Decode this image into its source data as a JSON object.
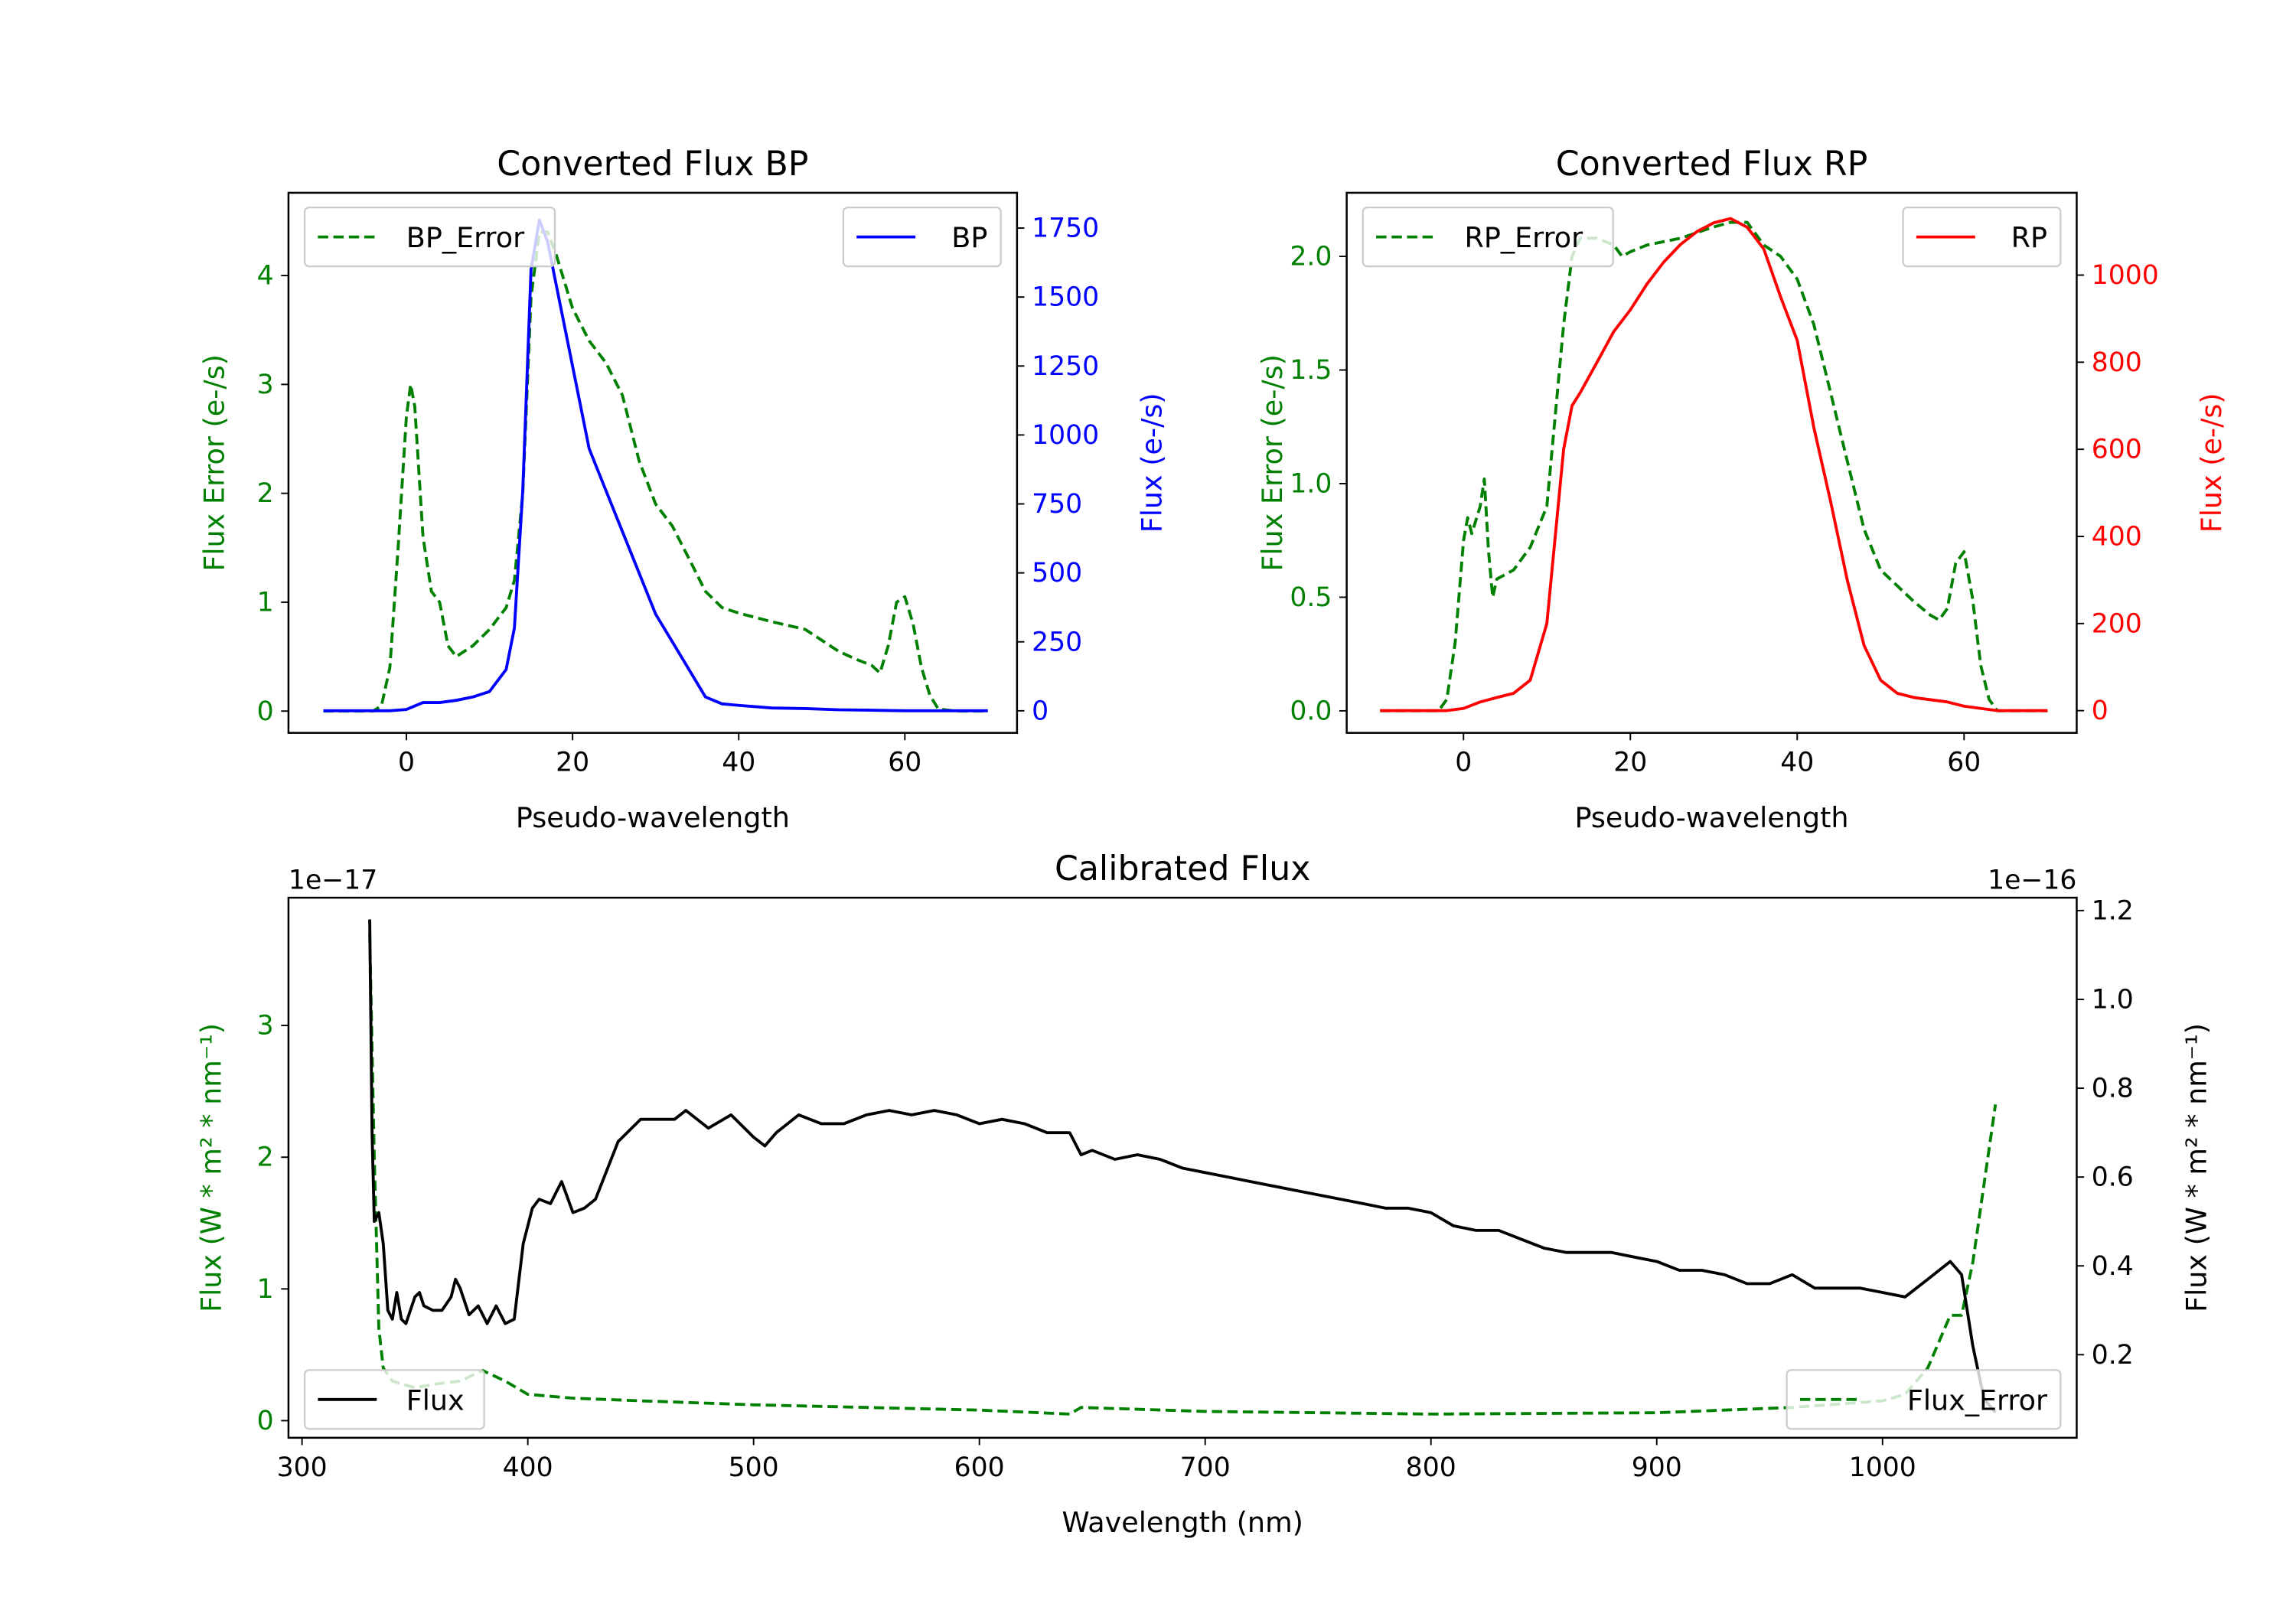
{
  "chart_data": [
    {
      "type": "line",
      "title": "Converted Flux BP",
      "xlabel": "Pseudo-wavelength",
      "ylabel_left": "Flux Error (e-/s)",
      "ylabel_right": "Flux (e-/s)",
      "xlim": [
        -14.2,
        73.5
      ],
      "ylim_left": [
        -0.2,
        4.76
      ],
      "ylim_right": [
        -80,
        1878
      ],
      "xticks": [
        0,
        20,
        40,
        60
      ],
      "yticks_left": [
        0,
        1,
        2,
        3,
        4
      ],
      "yticks_right": [
        0,
        250,
        500,
        750,
        1000,
        1250,
        1500,
        1750
      ],
      "left_color": "#008000",
      "right_color": "#0000ff",
      "legend_left": "BP_Error",
      "legend_right": "BP",
      "series": [
        {
          "name": "BP_Error",
          "axis": "left",
          "style": "dashed",
          "color": "#008000",
          "x": [
            -10,
            -4,
            -3,
            -2,
            -1,
            0,
            0.5,
            1,
            2,
            3,
            4,
            5,
            6,
            8,
            10,
            12,
            13,
            14,
            15,
            16,
            17,
            18,
            20,
            22,
            24,
            26,
            28,
            30,
            32,
            34,
            36,
            38,
            40,
            44,
            48,
            50,
            52,
            54,
            56,
            57,
            58,
            59,
            60,
            61,
            62,
            63,
            64,
            66,
            70
          ],
          "y": [
            0,
            0,
            0.05,
            0.4,
            1.5,
            2.7,
            3.0,
            2.8,
            1.6,
            1.1,
            1.0,
            0.6,
            0.5,
            0.6,
            0.75,
            0.95,
            1.2,
            2.0,
            3.8,
            4.4,
            4.4,
            4.2,
            3.7,
            3.4,
            3.2,
            2.9,
            2.3,
            1.9,
            1.7,
            1.4,
            1.1,
            0.95,
            0.9,
            0.82,
            0.75,
            0.65,
            0.55,
            0.48,
            0.42,
            0.35,
            0.6,
            1.0,
            1.05,
            0.8,
            0.4,
            0.15,
            0.02,
            0,
            0
          ]
        },
        {
          "name": "BP",
          "axis": "right",
          "style": "solid",
          "color": "#0000ff",
          "x": [
            -10,
            -2,
            0,
            2,
            4,
            6,
            8,
            10,
            12,
            13,
            14,
            15,
            16,
            17,
            18,
            20,
            22,
            24,
            26,
            28,
            30,
            32,
            34,
            36,
            38,
            40,
            44,
            48,
            52,
            56,
            60,
            64,
            70
          ],
          "y": [
            0,
            0,
            5,
            30,
            30,
            38,
            50,
            70,
            150,
            300,
            800,
            1600,
            1780,
            1700,
            1550,
            1250,
            950,
            800,
            650,
            500,
            350,
            250,
            150,
            50,
            25,
            20,
            10,
            8,
            4,
            2,
            0,
            0,
            0
          ]
        }
      ]
    },
    {
      "type": "line",
      "title": "Converted Flux RP",
      "xlabel": "Pseudo-wavelength",
      "ylabel_left": "Flux Error (e-/s)",
      "ylabel_right": "Flux (e-/s)",
      "xlim": [
        -14,
        73.5
      ],
      "ylim_left": [
        -0.097,
        2.28
      ],
      "ylim_right": [
        -51,
        1189
      ],
      "xticks": [
        0,
        20,
        40,
        60
      ],
      "yticks_left": [
        "0.0",
        "0.5",
        "1.0",
        "1.5",
        "2.0"
      ],
      "yticks_right": [
        0,
        200,
        400,
        600,
        800,
        1000
      ],
      "left_color": "#008000",
      "right_color": "#ff0000",
      "legend_left": "RP_Error",
      "legend_right": "RP",
      "series": [
        {
          "name": "RP_Error",
          "axis": "left",
          "style": "dashed",
          "color": "#008000",
          "x": [
            -10,
            -3,
            -2,
            -1,
            0,
            0.5,
            1,
            2,
            2.5,
            3,
            3.5,
            4,
            6,
            8,
            10,
            11,
            12,
            13,
            14,
            16,
            18,
            19,
            20,
            22,
            26,
            30,
            32,
            34,
            36,
            38,
            40,
            42,
            44,
            46,
            48,
            50,
            52,
            54,
            56,
            57,
            58,
            59,
            60,
            61,
            62,
            63,
            64,
            70
          ],
          "y": [
            0,
            0,
            0.05,
            0.3,
            0.75,
            0.85,
            0.78,
            0.9,
            1.02,
            0.7,
            0.5,
            0.58,
            0.62,
            0.72,
            0.9,
            1.3,
            1.7,
            2.0,
            2.08,
            2.08,
            2.05,
            2.0,
            2.02,
            2.05,
            2.08,
            2.13,
            2.15,
            2.15,
            2.05,
            2.0,
            1.9,
            1.7,
            1.4,
            1.1,
            0.8,
            0.62,
            0.55,
            0.48,
            0.42,
            0.4,
            0.45,
            0.65,
            0.7,
            0.5,
            0.2,
            0.05,
            0,
            0
          ]
        },
        {
          "name": "RP",
          "axis": "right",
          "style": "solid",
          "color": "#ff0000",
          "x": [
            -10,
            -2,
            0,
            2,
            4,
            6,
            8,
            10,
            11,
            12,
            13,
            14,
            16,
            18,
            20,
            22,
            24,
            26,
            28,
            30,
            32,
            34,
            36,
            38,
            40,
            42,
            44,
            46,
            48,
            50,
            52,
            54,
            56,
            58,
            60,
            62,
            64,
            70
          ],
          "y": [
            0,
            0,
            5,
            20,
            30,
            40,
            70,
            200,
            400,
            600,
            700,
            730,
            800,
            870,
            920,
            980,
            1030,
            1070,
            1100,
            1120,
            1130,
            1110,
            1060,
            950,
            850,
            650,
            480,
            300,
            150,
            70,
            40,
            30,
            25,
            20,
            10,
            5,
            0,
            0
          ]
        }
      ]
    },
    {
      "type": "line",
      "title": "Calibrated Flux",
      "xlabel": "Wavelength (nm)",
      "ylabel_left": "Flux (W * m² * nm⁻¹)",
      "ylabel_right": "Flux (W * m² * nm⁻¹)",
      "offset_left": "1e−17",
      "offset_right": "1e−16",
      "xlim": [
        294,
        1086
      ],
      "ylim_left": [
        -0.13,
        3.97
      ],
      "ylim_right": [
        0.013,
        1.229
      ],
      "xticks": [
        300,
        400,
        500,
        600,
        700,
        800,
        900,
        1000
      ],
      "yticks_left": [
        0,
        1,
        2,
        3
      ],
      "yticks_right": [
        "0.2",
        "0.4",
        "0.6",
        "0.8",
        "1.0",
        "1.2"
      ],
      "left_color": "#008000",
      "right_color": "#000000",
      "legend_left": "Flux",
      "legend_right": "Flux_Error",
      "series": [
        {
          "name": "Flux_Error",
          "axis": "left",
          "style": "dashed",
          "color": "#008000",
          "x": [
            330,
            332,
            334,
            336,
            340,
            350,
            360,
            370,
            380,
            390,
            400,
            420,
            450,
            500,
            550,
            600,
            640,
            645,
            700,
            800,
            900,
            960,
            1000,
            1010,
            1020,
            1030,
            1035,
            1040,
            1045,
            1050
          ],
          "y": [
            3.7,
            2.0,
            0.7,
            0.4,
            0.3,
            0.25,
            0.28,
            0.3,
            0.38,
            0.3,
            0.2,
            0.17,
            0.15,
            0.12,
            0.1,
            0.08,
            0.05,
            0.1,
            0.07,
            0.05,
            0.06,
            0.1,
            0.15,
            0.2,
            0.4,
            0.8,
            0.8,
            1.2,
            1.8,
            2.4
          ]
        },
        {
          "name": "Flux",
          "axis": "right",
          "style": "solid",
          "color": "#000000",
          "x": [
            330,
            331,
            332,
            334,
            336,
            338,
            340,
            342,
            344,
            346,
            350,
            352,
            354,
            358,
            362,
            366,
            368,
            370,
            374,
            378,
            382,
            386,
            390,
            394,
            398,
            402,
            405,
            410,
            415,
            420,
            425,
            430,
            440,
            450,
            460,
            465,
            470,
            480,
            490,
            500,
            505,
            510,
            520,
            530,
            540,
            550,
            560,
            570,
            580,
            590,
            600,
            610,
            620,
            630,
            640,
            645,
            650,
            660,
            670,
            680,
            690,
            700,
            710,
            720,
            730,
            740,
            750,
            760,
            770,
            780,
            790,
            800,
            810,
            820,
            830,
            840,
            850,
            860,
            870,
            880,
            890,
            900,
            910,
            920,
            930,
            940,
            950,
            960,
            970,
            980,
            990,
            1000,
            1010,
            1020,
            1030,
            1035,
            1040,
            1045,
            1050
          ],
          "y": [
            1.18,
            0.7,
            0.5,
            0.52,
            0.45,
            0.3,
            0.28,
            0.34,
            0.28,
            0.27,
            0.33,
            0.34,
            0.31,
            0.3,
            0.3,
            0.33,
            0.37,
            0.35,
            0.29,
            0.31,
            0.27,
            0.31,
            0.27,
            0.28,
            0.45,
            0.53,
            0.55,
            0.54,
            0.59,
            0.52,
            0.53,
            0.55,
            0.68,
            0.73,
            0.73,
            0.73,
            0.75,
            0.71,
            0.74,
            0.69,
            0.67,
            0.7,
            0.74,
            0.72,
            0.72,
            0.74,
            0.75,
            0.74,
            0.75,
            0.74,
            0.72,
            0.73,
            0.72,
            0.7,
            0.7,
            0.65,
            0.66,
            0.64,
            0.65,
            0.64,
            0.62,
            0.61,
            0.6,
            0.59,
            0.58,
            0.57,
            0.56,
            0.55,
            0.54,
            0.53,
            0.53,
            0.52,
            0.49,
            0.48,
            0.48,
            0.46,
            0.44,
            0.43,
            0.43,
            0.43,
            0.42,
            0.41,
            0.39,
            0.39,
            0.38,
            0.36,
            0.36,
            0.38,
            0.35,
            0.35,
            0.35,
            0.34,
            0.33,
            0.37,
            0.41,
            0.38,
            0.22,
            0.1,
            0.07
          ]
        }
      ]
    }
  ]
}
